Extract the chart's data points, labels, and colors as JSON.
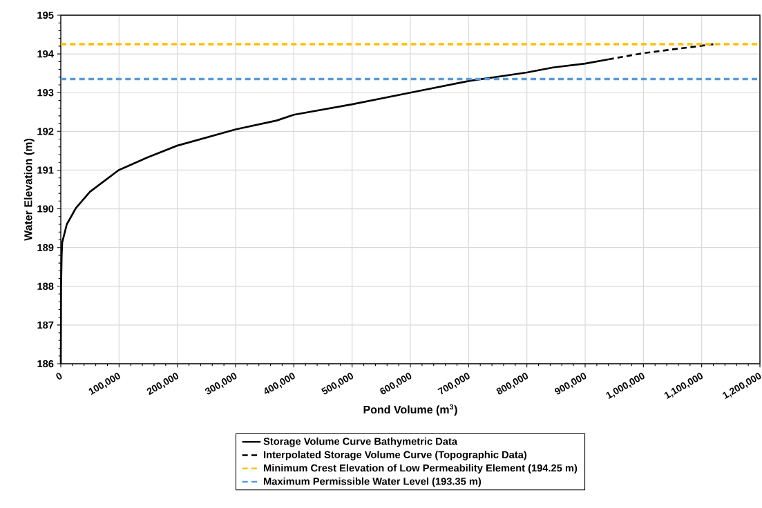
{
  "chart_data": {
    "type": "line",
    "xlabel": "Pond Volume (m$^{3}$)",
    "ylabel": "Water Elevation (m)",
    "series": [
      {
        "name": "Storage Volume Curve Bathymetric Data",
        "color": "#000000",
        "line_style": "solid",
        "x": [
          0,
          500,
          1500,
          2400,
          10300,
          26000,
          50000,
          99400,
          149000,
          199500,
          300000,
          370500,
          400000,
          500000,
          600000,
          700000,
          800000,
          845000,
          900000,
          940000
        ],
        "values": [
          186,
          188,
          188.8,
          189.13,
          189.6,
          190.02,
          190.44,
          191.0,
          191.33,
          191.63,
          192.05,
          192.28,
          192.43,
          192.7,
          193.0,
          193.3,
          193.52,
          193.65,
          193.75,
          193.86
        ]
      },
      {
        "name": "Interpolated Storage Volume Curve (Topographic Data)",
        "color": "#000000",
        "line_style": "dashed",
        "x": [
          940000,
          1000000,
          1120000
        ],
        "values": [
          193.86,
          194.02,
          194.25
        ]
      }
    ],
    "ref_lines": [
      {
        "axis": "y",
        "value": 194.25,
        "label": "Minimum Crest Elevation of Low Permeability Element (194.25 m)",
        "color": "#ffc000",
        "line_style": "dashed"
      },
      {
        "axis": "y",
        "value": 193.35,
        "label": "Maximum Permissible Water Level (193.35 m)",
        "color": "#5b9bd5",
        "line_style": "dashed"
      }
    ],
    "xlim": [
      0,
      1200000
    ],
    "ylim": [
      186,
      195
    ],
    "xticks": [
      0,
      {
        "value": 100000,
        "label": "100,000"
      },
      {
        "value": 200000,
        "label": "200,000"
      },
      {
        "value": 300000,
        "label": "300,000"
      },
      {
        "value": 400000,
        "label": "400,000"
      },
      {
        "value": 500000,
        "label": "500,000"
      },
      {
        "value": 600000,
        "label": "600,000"
      },
      {
        "value": 700000,
        "label": "700,000"
      },
      {
        "value": 800000,
        "label": "800,000"
      },
      {
        "value": 900000,
        "label": "900,000"
      },
      {
        "value": 1000000,
        "label": "1,000,000"
      },
      {
        "value": 1100000,
        "label": "1,100,000"
      },
      {
        "value": 1200000,
        "label": "1,200,000"
      }
    ],
    "yticks": [
      186,
      187,
      188,
      189,
      190,
      191,
      192,
      193,
      194,
      195
    ],
    "grid": true,
    "legend": "bottom",
    "marker": "none"
  }
}
